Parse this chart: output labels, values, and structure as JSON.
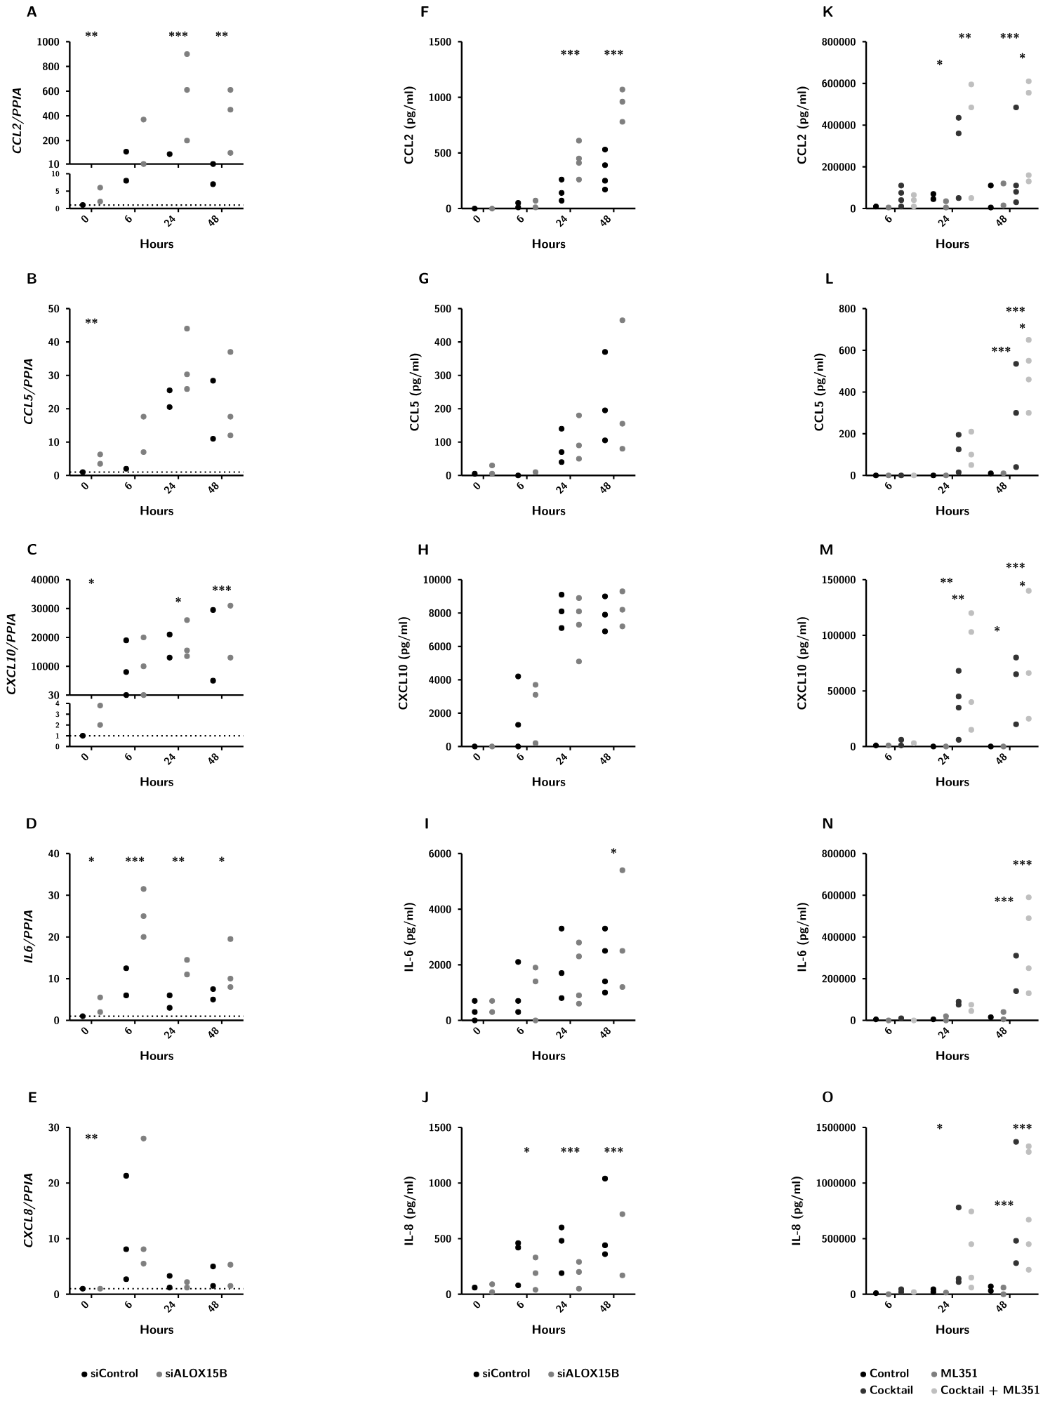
{
  "chart_data": [
    {
      "type": "scatter",
      "title": "A",
      "ylabel": "CCL2/PPIA",
      "categories": [
        "0",
        "6",
        "24",
        "48"
      ],
      "ylim": [
        10,
        1000
      ],
      "yticks": [
        10,
        200,
        400,
        600,
        800,
        1000
      ],
      "tick_labels": "y",
      "series": [
        {
          "color": "#000000",
          "marker": "circle",
          "x": [
            "6",
            "24",
            "48"
          ],
          "values": [
            110,
            90,
            10
          ]
        },
        {
          "color": "#7f7f7f",
          "marker": "circle",
          "x": [
            "6",
            "6",
            "24",
            "24",
            "24",
            "48",
            "48",
            "48"
          ],
          "values": [
            370,
            10,
            900,
            610,
            200,
            610,
            450,
            100
          ]
        }
      ],
      "annotations": [
        "**",
        "***",
        "**"
      ]
    },
    {
      "type": "scatter",
      "xlabel": "Hours",
      "categories": [
        "0",
        "6",
        "24",
        "48"
      ],
      "ylim": [
        0,
        10
      ],
      "yticks": [
        0,
        5,
        10
      ],
      "series": [
        {
          "color": "#000000",
          "marker": "circle",
          "x": [
            "0",
            "6",
            "48"
          ],
          "values": [
            1,
            8,
            7
          ]
        },
        {
          "color": "#7f7f7f",
          "marker": "circle",
          "x": [
            "0",
            "0"
          ],
          "values": [
            6,
            2
          ]
        }
      ],
      "ref_lines": [
        {
          "axis": "y",
          "value": 1,
          "line_style": "dotted"
        }
      ]
    },
    {
      "type": "scatter",
      "title": "B",
      "xlabel": "Hours",
      "ylabel": "CCL5/PPIA",
      "categories": [
        "0",
        "6",
        "24",
        "48"
      ],
      "ylim": [
        0,
        50
      ],
      "yticks": [
        0,
        10,
        20,
        30,
        40,
        50
      ],
      "series": [
        {
          "color": "#000000",
          "marker": "circle",
          "x": [
            "0",
            "6",
            "24",
            "24",
            "48",
            "48"
          ],
          "values": [
            1,
            2,
            25.5,
            20.5,
            28.4,
            11
          ]
        },
        {
          "color": "#7f7f7f",
          "marker": "circle",
          "x": [
            "0",
            "0",
            "6",
            "6",
            "24",
            "24",
            "24",
            "48",
            "48",
            "48"
          ],
          "values": [
            6.3,
            3.5,
            17.6,
            7,
            44,
            30.3,
            25.9,
            37,
            17.6,
            12
          ]
        }
      ],
      "annotations": [
        "**"
      ],
      "ref_lines": [
        {
          "axis": "y",
          "value": 1,
          "line_style": "dotted"
        }
      ]
    },
    {
      "type": "scatter",
      "title": "C",
      "ylabel": "CXCL10/PPIA",
      "categories": [
        "0",
        "6",
        "24",
        "48"
      ],
      "ylim": [
        30,
        40000
      ],
      "yticks": [
        30,
        10000,
        20000,
        30000,
        40000
      ],
      "tick_labels": "y",
      "series": [
        {
          "color": "#000000",
          "marker": "circle",
          "x": [
            "6",
            "6",
            "6",
            "24",
            "24",
            "48",
            "48"
          ],
          "values": [
            19000,
            8000,
            30,
            21000,
            13000,
            29500,
            5000
          ]
        },
        {
          "color": "#7f7f7f",
          "marker": "circle",
          "x": [
            "6",
            "6",
            "6",
            "24",
            "24",
            "24",
            "48",
            "48"
          ],
          "values": [
            20000,
            10000,
            30,
            26000,
            15500,
            13500,
            31000,
            13000
          ]
        }
      ],
      "annotations": [
        "*",
        "*",
        "***"
      ]
    },
    {
      "type": "scatter",
      "xlabel": "Hours",
      "categories": [
        "0",
        "6",
        "24",
        "48"
      ],
      "ylim": [
        0,
        4
      ],
      "yticks": [
        0,
        1,
        2,
        3,
        4
      ],
      "series": [
        {
          "color": "#000000",
          "marker": "circle",
          "x": [
            "0"
          ],
          "values": [
            1
          ]
        },
        {
          "color": "#7f7f7f",
          "marker": "circle",
          "x": [
            "0",
            "0"
          ],
          "values": [
            3.8,
            2
          ]
        }
      ],
      "ref_lines": [
        {
          "axis": "y",
          "value": 1,
          "line_style": "dotted"
        }
      ]
    },
    {
      "type": "scatter",
      "title": "D",
      "xlabel": "Hours",
      "ylabel": "IL6/PPIA",
      "categories": [
        "0",
        "6",
        "24",
        "48"
      ],
      "ylim": [
        0,
        40
      ],
      "yticks": [
        0,
        10,
        20,
        30,
        40
      ],
      "series": [
        {
          "color": "#000000",
          "marker": "circle",
          "x": [
            "0",
            "6",
            "6",
            "24",
            "24",
            "48",
            "48"
          ],
          "values": [
            1,
            12.5,
            6,
            6,
            3,
            7.5,
            5
          ]
        },
        {
          "color": "#7f7f7f",
          "marker": "circle",
          "x": [
            "0",
            "0",
            "6",
            "6",
            "6",
            "24",
            "24",
            "48",
            "48",
            "48"
          ],
          "values": [
            5.5,
            2,
            31.5,
            25,
            20,
            14.5,
            11,
            19.5,
            10,
            8
          ]
        }
      ],
      "annotations": [
        "*",
        "***",
        "**",
        "*"
      ],
      "ref_lines": [
        {
          "axis": "y",
          "value": 1,
          "line_style": "dotted"
        }
      ]
    },
    {
      "type": "scatter",
      "title": "E",
      "xlabel": "Hours",
      "ylabel": "CXCL8/PPIA",
      "categories": [
        "0",
        "6",
        "24",
        "48"
      ],
      "ylim": [
        0,
        30
      ],
      "yticks": [
        0,
        10,
        20,
        30
      ],
      "legend": "bottom",
      "series": [
        {
          "name": "siControl",
          "color": "#000000",
          "marker": "circle",
          "x": [
            "0",
            "6",
            "6",
            "6",
            "24",
            "24",
            "48",
            "48"
          ],
          "values": [
            1,
            21.3,
            8.1,
            2.7,
            3.3,
            1.2,
            5,
            1.5
          ]
        },
        {
          "name": "siALOX15B",
          "color": "#7f7f7f",
          "marker": "circle",
          "x": [
            "0",
            "6",
            "6",
            "6",
            "24",
            "24",
            "48",
            "48"
          ],
          "values": [
            1,
            28,
            8.1,
            5.5,
            2.2,
            1.2,
            5.3,
            1.5
          ]
        }
      ],
      "annotations": [
        "**"
      ],
      "ref_lines": [
        {
          "axis": "y",
          "value": 1,
          "line_style": "dotted"
        }
      ]
    },
    {
      "type": "scatter",
      "title": "F",
      "xlabel": "Hours",
      "ylabel": "CCL2 (pg/ml)",
      "categories": [
        "0",
        "6",
        "24",
        "48"
      ],
      "ylim": [
        0,
        1500
      ],
      "yticks": [
        0,
        500,
        1000,
        1500
      ],
      "series": [
        {
          "color": "#000000",
          "marker": "circle",
          "x": [
            "0",
            "6",
            "6",
            "24",
            "24",
            "24",
            "48",
            "48",
            "48",
            "48"
          ],
          "values": [
            0,
            50,
            10,
            260,
            140,
            70,
            530,
            390,
            250,
            170
          ]
        },
        {
          "color": "#7f7f7f",
          "marker": "circle",
          "x": [
            "0",
            "6",
            "6",
            "24",
            "24",
            "24",
            "24",
            "48",
            "48",
            "48"
          ],
          "values": [
            0,
            70,
            10,
            610,
            450,
            410,
            260,
            1070,
            960,
            780
          ]
        }
      ],
      "annotations": [
        "***",
        "***"
      ]
    },
    {
      "type": "scatter",
      "title": "G",
      "xlabel": "Hours",
      "ylabel": "CCL5 (pg/ml)",
      "categories": [
        "0",
        "6",
        "24",
        "48"
      ],
      "ylim": [
        0,
        500
      ],
      "yticks": [
        0,
        100,
        200,
        300,
        400,
        500
      ],
      "series": [
        {
          "color": "#000000",
          "marker": "circle",
          "x": [
            "0",
            "6",
            "24",
            "24",
            "24",
            "48",
            "48",
            "48"
          ],
          "values": [
            5,
            0,
            140,
            70,
            40,
            370,
            195,
            105
          ]
        },
        {
          "color": "#7f7f7f",
          "marker": "circle",
          "x": [
            "0",
            "0",
            "6",
            "24",
            "24",
            "24",
            "48",
            "48",
            "48"
          ],
          "values": [
            30,
            5,
            10,
            180,
            90,
            50,
            465,
            155,
            80
          ]
        }
      ]
    },
    {
      "type": "scatter",
      "title": "H",
      "xlabel": "Hours",
      "ylabel": "CXCL10 (pg/ml)",
      "categories": [
        "0",
        "6",
        "24",
        "48"
      ],
      "ylim": [
        0,
        10000
      ],
      "yticks": [
        0,
        2000,
        4000,
        6000,
        8000,
        10000
      ],
      "series": [
        {
          "color": "#000000",
          "marker": "circle",
          "x": [
            "0",
            "6",
            "6",
            "6",
            "24",
            "24",
            "24",
            "48",
            "48",
            "48"
          ],
          "values": [
            0,
            4200,
            1300,
            0,
            9100,
            8100,
            7100,
            9000,
            7900,
            6900
          ]
        },
        {
          "color": "#7f7f7f",
          "marker": "circle",
          "x": [
            "0",
            "6",
            "6",
            "6",
            "24",
            "24",
            "24",
            "24",
            "48",
            "48",
            "48"
          ],
          "values": [
            0,
            3700,
            3100,
            200,
            8900,
            8100,
            7300,
            5100,
            9300,
            8200,
            7200
          ]
        }
      ]
    },
    {
      "type": "scatter",
      "title": "I",
      "xlabel": "Hours",
      "ylabel": "IL-6 (pg/ml)",
      "categories": [
        "0",
        "6",
        "24",
        "48"
      ],
      "ylim": [
        0,
        6000
      ],
      "yticks": [
        0,
        2000,
        4000,
        6000
      ],
      "series": [
        {
          "color": "#000000",
          "marker": "circle",
          "x": [
            "0",
            "0",
            "0",
            "6",
            "6",
            "6",
            "24",
            "24",
            "24",
            "48",
            "48",
            "48",
            "48"
          ],
          "values": [
            700,
            300,
            0,
            2100,
            700,
            300,
            3300,
            1700,
            800,
            3300,
            2500,
            1400,
            1000
          ]
        },
        {
          "color": "#7f7f7f",
          "marker": "circle",
          "x": [
            "0",
            "0",
            "6",
            "6",
            "6",
            "24",
            "24",
            "24",
            "24",
            "48",
            "48",
            "48"
          ],
          "values": [
            700,
            300,
            1900,
            1400,
            0,
            2800,
            2300,
            900,
            600,
            5400,
            2500,
            1200
          ]
        }
      ],
      "annotations": [
        "*"
      ]
    },
    {
      "type": "scatter",
      "title": "J",
      "xlabel": "Hours",
      "ylabel": "IL-8 (pg/ml)",
      "categories": [
        "0",
        "6",
        "24",
        "48"
      ],
      "ylim": [
        0,
        1500
      ],
      "yticks": [
        0,
        500,
        1000,
        1500
      ],
      "legend": "bottom",
      "series": [
        {
          "name": "siControl",
          "color": "#000000",
          "marker": "circle",
          "x": [
            "0",
            "6",
            "6",
            "6",
            "24",
            "24",
            "24",
            "48",
            "48",
            "48"
          ],
          "values": [
            60,
            460,
            420,
            80,
            600,
            480,
            190,
            1040,
            440,
            360
          ]
        },
        {
          "name": "siALOX15B",
          "color": "#7f7f7f",
          "marker": "circle",
          "x": [
            "0",
            "0",
            "6",
            "6",
            "6",
            "24",
            "24",
            "24",
            "48",
            "48"
          ],
          "values": [
            90,
            20,
            330,
            190,
            40,
            290,
            200,
            50,
            720,
            170
          ]
        }
      ],
      "annotations": [
        "*",
        "***",
        "***"
      ]
    },
    {
      "type": "scatter",
      "title": "K",
      "xlabel": "Hours",
      "ylabel": "CCL2 (pg/ml)",
      "categories": [
        "6",
        "24",
        "48"
      ],
      "ylim": [
        0,
        800000
      ],
      "yticks": [
        0,
        200000,
        400000,
        600000,
        800000
      ],
      "series": [
        {
          "color": "#000000",
          "marker": "circle",
          "x": [
            "6",
            "24",
            "24",
            "48",
            "48"
          ],
          "values": [
            10000,
            70000,
            45000,
            110000,
            5000
          ]
        },
        {
          "color": "#7f7f7f",
          "marker": "circle",
          "x": [
            "6",
            "24",
            "24",
            "48",
            "48"
          ],
          "values": [
            5000,
            35000,
            5000,
            120000,
            15000
          ]
        },
        {
          "color": "#333333",
          "marker": "circle",
          "x": [
            "6",
            "6",
            "6",
            "6",
            "24",
            "24",
            "24",
            "48",
            "48",
            "48",
            "48"
          ],
          "values": [
            110000,
            75000,
            40000,
            10000,
            435000,
            360000,
            50000,
            485000,
            110000,
            80000,
            30000
          ]
        },
        {
          "color": "#bfbfbf",
          "marker": "circle",
          "x": [
            "6",
            "6",
            "6",
            "24",
            "24",
            "24",
            "48",
            "48",
            "48",
            "48"
          ],
          "values": [
            65000,
            40000,
            10000,
            595000,
            485000,
            50000,
            610000,
            555000,
            160000,
            130000
          ]
        }
      ],
      "annotations": [
        "*",
        "**",
        "***",
        "*"
      ]
    },
    {
      "type": "scatter",
      "title": "L",
      "xlabel": "Hours",
      "ylabel": "CCL5 (pg/ml)",
      "categories": [
        "6",
        "24",
        "48"
      ],
      "ylim": [
        0,
        800
      ],
      "yticks": [
        0,
        200,
        400,
        600,
        800
      ],
      "series": [
        {
          "color": "#000000",
          "marker": "circle",
          "x": [
            "6",
            "24",
            "48"
          ],
          "values": [
            0,
            0,
            10
          ]
        },
        {
          "color": "#7f7f7f",
          "marker": "circle",
          "x": [
            "6",
            "24",
            "48"
          ],
          "values": [
            0,
            0,
            10
          ]
        },
        {
          "color": "#333333",
          "marker": "circle",
          "x": [
            "6",
            "24",
            "24",
            "24",
            "48",
            "48",
            "48"
          ],
          "values": [
            0,
            195,
            125,
            15,
            535,
            300,
            40
          ]
        },
        {
          "color": "#bfbfbf",
          "marker": "circle",
          "x": [
            "6",
            "24",
            "24",
            "24",
            "48",
            "48",
            "48",
            "48"
          ],
          "values": [
            0,
            210,
            100,
            50,
            650,
            550,
            460,
            300
          ]
        }
      ],
      "annotations": [
        "***",
        "*",
        "***"
      ]
    },
    {
      "type": "scatter",
      "title": "M",
      "xlabel": "Hours",
      "ylabel": "CXCL10 (pg/ml)",
      "categories": [
        "6",
        "24",
        "48"
      ],
      "ylim": [
        0,
        150000
      ],
      "yticks": [
        0,
        50000,
        100000,
        150000
      ],
      "series": [
        {
          "color": "#000000",
          "marker": "circle",
          "x": [
            "6",
            "24",
            "48"
          ],
          "values": [
            1000,
            0,
            0
          ]
        },
        {
          "color": "#7f7f7f",
          "marker": "circle",
          "x": [
            "6",
            "24",
            "48"
          ],
          "values": [
            1000,
            0,
            0
          ]
        },
        {
          "color": "#333333",
          "marker": "circle",
          "x": [
            "6",
            "6",
            "24",
            "24",
            "24",
            "24",
            "48",
            "48",
            "48"
          ],
          "values": [
            6000,
            1000,
            68000,
            45000,
            35000,
            6000,
            80000,
            65000,
            20000
          ]
        },
        {
          "color": "#bfbfbf",
          "marker": "circle",
          "x": [
            "6",
            "24",
            "24",
            "24",
            "24",
            "48",
            "48",
            "48"
          ],
          "values": [
            3000,
            120000,
            103000,
            40000,
            15000,
            140000,
            66000,
            25000
          ]
        }
      ],
      "annotations": [
        "**",
        "**",
        "*",
        "***",
        "*"
      ]
    },
    {
      "type": "scatter",
      "title": "N",
      "xlabel": "Hours",
      "ylabel": "IL-6 (pg/ml)",
      "categories": [
        "6",
        "24",
        "48"
      ],
      "ylim": [
        0,
        800000
      ],
      "yticks": [
        0,
        200000,
        400000,
        600000,
        800000
      ],
      "series": [
        {
          "color": "#000000",
          "marker": "circle",
          "x": [
            "6",
            "24",
            "48"
          ],
          "values": [
            5000,
            5000,
            15000
          ]
        },
        {
          "color": "#7f7f7f",
          "marker": "circle",
          "x": [
            "6",
            "24",
            "24",
            "48",
            "48"
          ],
          "values": [
            0,
            20000,
            0,
            40000,
            5000
          ]
        },
        {
          "color": "#333333",
          "marker": "circle",
          "x": [
            "6",
            "24",
            "24",
            "48",
            "48"
          ],
          "values": [
            10000,
            90000,
            75000,
            310000,
            140000
          ]
        },
        {
          "color": "#bfbfbf",
          "marker": "circle",
          "x": [
            "6",
            "24",
            "24",
            "48",
            "48",
            "48",
            "48"
          ],
          "values": [
            0,
            75000,
            45000,
            590000,
            490000,
            250000,
            130000
          ]
        }
      ],
      "annotations": [
        "***",
        "***"
      ]
    },
    {
      "type": "scatter",
      "title": "O",
      "xlabel": "Hours",
      "ylabel": "IL-8 (pg/ml)",
      "categories": [
        "6",
        "24",
        "48"
      ],
      "ylim": [
        0,
        1500000
      ],
      "yticks": [
        0,
        500000,
        1000000,
        1500000
      ],
      "legend": "bottom",
      "series": [
        {
          "name": "Control",
          "color": "#000000",
          "marker": "circle",
          "x": [
            "6",
            "24",
            "24",
            "48",
            "48"
          ],
          "values": [
            10000,
            45000,
            20000,
            70000,
            30000
          ]
        },
        {
          "name": "ML351",
          "color": "#7f7f7f",
          "marker": "circle",
          "x": [
            "6",
            "24",
            "48",
            "48"
          ],
          "values": [
            0,
            15000,
            60000,
            0
          ]
        },
        {
          "name": "Cocktail",
          "color": "#333333",
          "marker": "circle",
          "x": [
            "6",
            "6",
            "24",
            "24",
            "24",
            "48",
            "48",
            "48"
          ],
          "values": [
            45000,
            20000,
            780000,
            140000,
            110000,
            1370000,
            480000,
            280000
          ]
        },
        {
          "name": "Cocktail + ML351",
          "color": "#bfbfbf",
          "marker": "circle",
          "x": [
            "6",
            "24",
            "24",
            "24",
            "24",
            "48",
            "48",
            "48",
            "48",
            "48"
          ],
          "values": [
            20000,
            745000,
            450000,
            150000,
            60000,
            1330000,
            1280000,
            670000,
            450000,
            220000
          ]
        }
      ],
      "annotations": [
        "*",
        "***",
        "***"
      ]
    }
  ]
}
